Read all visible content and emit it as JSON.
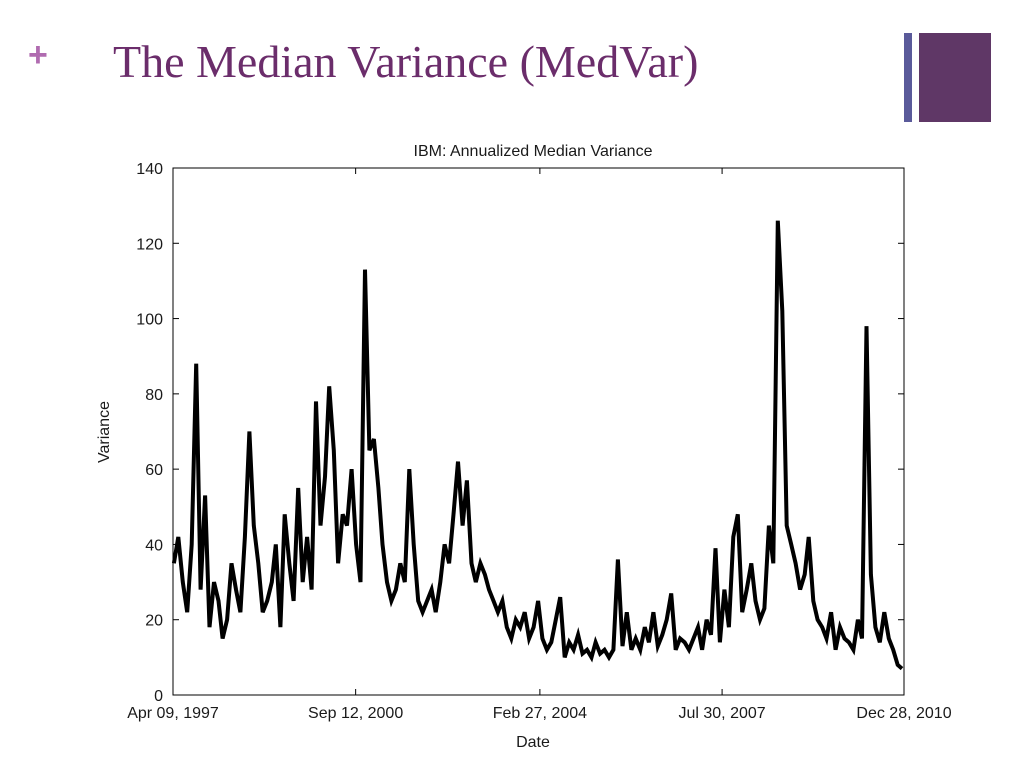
{
  "slide": {
    "bullet": "+",
    "title": "The Median Variance (MedVar)",
    "colors": {
      "title": "#6b2d6b",
      "bullet": "#b06bb0",
      "accent_thin": "#5a5a9a",
      "accent_box": "#5f3766",
      "line": "#000000"
    }
  },
  "chart_data": {
    "type": "line",
    "title": "IBM: Annualized Median Variance",
    "xlabel": "Date",
    "ylabel": "Variance",
    "ylim": [
      0,
      140
    ],
    "xlim": [
      "1997-04-09",
      "2010-12-28"
    ],
    "yticks": [
      0,
      20,
      40,
      60,
      80,
      100,
      120,
      140
    ],
    "xticks": [
      {
        "date": "1997-04-09",
        "label": "Apr 09, 1997"
      },
      {
        "date": "2000-09-12",
        "label": "Sep 12, 2000"
      },
      {
        "date": "2004-02-27",
        "label": "Feb 27, 2004"
      },
      {
        "date": "2007-07-30",
        "label": "Jul 30, 2007"
      },
      {
        "date": "2010-12-28",
        "label": "Dec 28, 2010"
      }
    ],
    "grid": false,
    "series": [
      {
        "x": [
          "1997-04",
          "1997-05",
          "1997-06",
          "1997-07",
          "1997-08",
          "1997-09",
          "1997-10",
          "1997-11",
          "1997-12",
          "1998-01",
          "1998-02",
          "1998-03",
          "1998-04",
          "1998-05",
          "1998-06",
          "1998-07",
          "1998-08",
          "1998-09",
          "1998-10",
          "1998-11",
          "1998-12",
          "1999-01",
          "1999-02",
          "1999-03",
          "1999-04",
          "1999-05",
          "1999-06",
          "1999-07",
          "1999-08",
          "1999-09",
          "1999-10",
          "1999-11",
          "1999-12",
          "2000-01",
          "2000-02",
          "2000-03",
          "2000-04",
          "2000-05",
          "2000-06",
          "2000-07",
          "2000-08",
          "2000-09",
          "2000-10",
          "2000-11",
          "2000-12",
          "2001-01",
          "2001-02",
          "2001-03",
          "2001-04",
          "2001-05",
          "2001-06",
          "2001-07",
          "2001-08",
          "2001-09",
          "2001-10",
          "2001-11",
          "2001-12",
          "2002-01",
          "2002-02",
          "2002-03",
          "2002-04",
          "2002-05",
          "2002-06",
          "2002-07",
          "2002-08",
          "2002-09",
          "2002-10",
          "2002-11",
          "2002-12",
          "2003-01",
          "2003-02",
          "2003-03",
          "2003-04",
          "2003-05",
          "2003-06",
          "2003-07",
          "2003-08",
          "2003-09",
          "2003-10",
          "2003-11",
          "2003-12",
          "2004-01",
          "2004-02",
          "2004-03",
          "2004-04",
          "2004-05",
          "2004-06",
          "2004-07",
          "2004-08",
          "2004-09",
          "2004-10",
          "2004-11",
          "2004-12",
          "2005-01",
          "2005-02",
          "2005-03",
          "2005-04",
          "2005-05",
          "2005-06",
          "2005-07",
          "2005-08",
          "2005-09",
          "2005-10",
          "2005-11",
          "2005-12",
          "2006-01",
          "2006-02",
          "2006-03",
          "2006-04",
          "2006-05",
          "2006-06",
          "2006-07",
          "2006-08",
          "2006-09",
          "2006-10",
          "2006-11",
          "2006-12",
          "2007-01",
          "2007-02",
          "2007-03",
          "2007-04",
          "2007-05",
          "2007-06",
          "2007-07",
          "2007-08",
          "2007-09",
          "2007-10",
          "2007-11",
          "2007-12",
          "2008-01",
          "2008-02",
          "2008-03",
          "2008-04",
          "2008-05",
          "2008-06",
          "2008-07",
          "2008-08",
          "2008-09",
          "2008-10",
          "2008-11",
          "2008-12",
          "2009-01",
          "2009-02",
          "2009-03",
          "2009-04",
          "2009-05",
          "2009-06",
          "2009-07",
          "2009-08",
          "2009-09",
          "2009-10",
          "2009-11",
          "2009-12",
          "2010-01",
          "2010-02",
          "2010-03",
          "2010-04",
          "2010-05",
          "2010-06",
          "2010-07",
          "2010-08",
          "2010-09",
          "2010-10",
          "2010-11",
          "2010-12"
        ],
        "y": [
          35,
          42,
          30,
          22,
          40,
          88,
          28,
          53,
          18,
          30,
          25,
          15,
          20,
          35,
          28,
          22,
          42,
          70,
          45,
          35,
          22,
          25,
          30,
          40,
          18,
          48,
          35,
          25,
          55,
          30,
          42,
          28,
          78,
          45,
          58,
          82,
          65,
          35,
          48,
          45,
          60,
          40,
          30,
          113,
          65,
          68,
          55,
          40,
          30,
          25,
          28,
          35,
          30,
          60,
          40,
          25,
          22,
          25,
          28,
          22,
          30,
          40,
          35,
          48,
          62,
          45,
          57,
          35,
          30,
          35,
          32,
          28,
          25,
          22,
          25,
          18,
          15,
          20,
          18,
          22,
          15,
          18,
          25,
          15,
          12,
          14,
          20,
          26,
          10,
          14,
          12,
          16,
          11,
          12,
          10,
          14,
          11,
          12,
          10,
          12,
          36,
          13,
          22,
          12,
          15,
          12,
          18,
          14,
          22,
          13,
          16,
          20,
          27,
          12,
          15,
          14,
          12,
          15,
          18,
          12,
          20,
          16,
          39,
          14,
          28,
          18,
          42,
          48,
          22,
          28,
          35,
          25,
          20,
          23,
          45,
          35,
          126,
          102,
          45,
          40,
          35,
          28,
          32,
          42,
          25,
          20,
          18,
          15,
          22,
          12,
          18,
          15,
          14,
          12,
          20,
          15,
          98,
          32,
          18,
          14,
          22,
          15,
          12,
          8,
          7
        ]
      }
    ]
  }
}
